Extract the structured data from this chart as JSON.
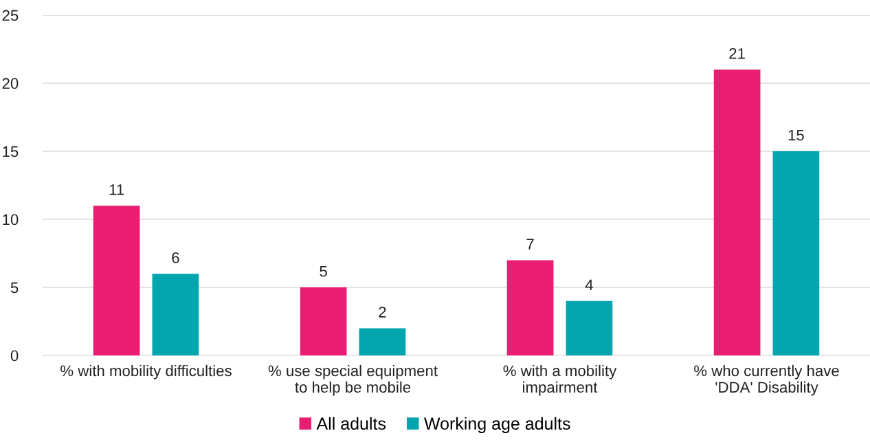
{
  "chart_data": {
    "type": "bar",
    "categories": [
      "% with mobility difficulties",
      "% use special equipment\nto help be mobile",
      "% with a mobility\nimpairment",
      "% who currently have\n'DDA' Disability"
    ],
    "series": [
      {
        "name": "All adults",
        "color": "#e91e73",
        "values": [
          11,
          5,
          7,
          21
        ]
      },
      {
        "name": "Working age adults",
        "color": "#00a5ad",
        "values": [
          6,
          2,
          4,
          15
        ]
      }
    ],
    "ylim": [
      0,
      25
    ],
    "yticks": [
      0,
      5,
      10,
      15,
      20,
      25
    ],
    "grid": "y",
    "legend": "bottom",
    "data_labels": true
  }
}
